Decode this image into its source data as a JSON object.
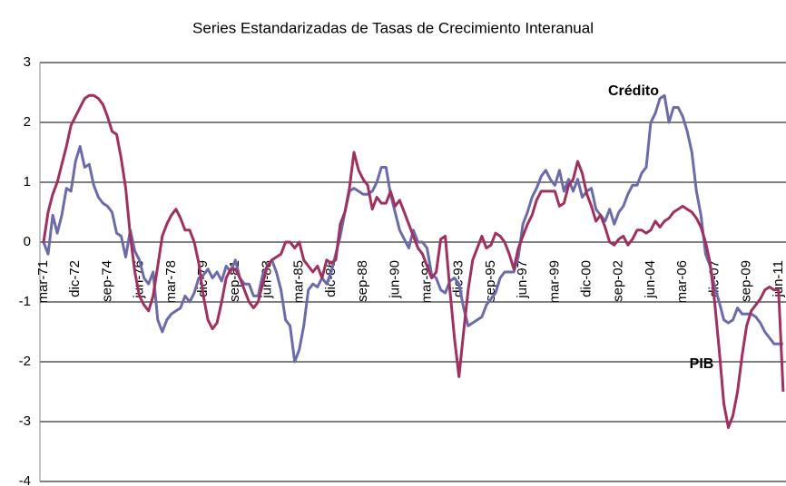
{
  "chart_data": {
    "type": "line",
    "title": "Series Estandarizadas de Tasas de Crecimiento Interanual",
    "categories": [
      "mar-71",
      null,
      null,
      null,
      null,
      null,
      null,
      "dic-72",
      null,
      null,
      null,
      null,
      null,
      null,
      "sep-74",
      null,
      null,
      null,
      null,
      null,
      null,
      "jun-76",
      null,
      null,
      null,
      null,
      null,
      null,
      "mar-78",
      null,
      null,
      null,
      null,
      null,
      null,
      "dic-79",
      null,
      null,
      null,
      null,
      null,
      null,
      "sep-81",
      null,
      null,
      null,
      null,
      null,
      null,
      "jun-83",
      null,
      null,
      null,
      null,
      null,
      null,
      "mar-85",
      null,
      null,
      null,
      null,
      null,
      null,
      "dic-86",
      null,
      null,
      null,
      null,
      null,
      null,
      "sep-88",
      null,
      null,
      null,
      null,
      null,
      null,
      "jun-90",
      null,
      null,
      null,
      null,
      null,
      null,
      "mar-92",
      null,
      null,
      null,
      null,
      null,
      null,
      "dic-93",
      null,
      null,
      null,
      null,
      null,
      null,
      "sep-95",
      null,
      null,
      null,
      null,
      null,
      null,
      "jun-97",
      null,
      null,
      null,
      null,
      null,
      null,
      "mar-99",
      null,
      null,
      null,
      null,
      null,
      null,
      "dic-00",
      null,
      null,
      null,
      null,
      null,
      null,
      "sep-02",
      null,
      null,
      null,
      null,
      null,
      null,
      "jun-04",
      null,
      null,
      null,
      null,
      null,
      null,
      "mar-06",
      null,
      null,
      null,
      null,
      null,
      null,
      "dic-07",
      null,
      null,
      null,
      null,
      null,
      null,
      "sep-09",
      null,
      null,
      null,
      null,
      null,
      null,
      "jun-11",
      null
    ],
    "series": [
      {
        "name": "Crédito",
        "color": "#6b6baa",
        "values": [
          0.0,
          -0.2,
          0.45,
          0.15,
          0.45,
          0.9,
          0.85,
          1.35,
          1.6,
          1.25,
          1.3,
          0.95,
          0.75,
          0.65,
          0.6,
          0.5,
          0.15,
          0.1,
          -0.25,
          0.2,
          -0.15,
          -0.3,
          -0.6,
          -0.7,
          -0.5,
          -1.3,
          -1.5,
          -1.3,
          -1.2,
          -1.15,
          -1.1,
          -0.9,
          -1.0,
          -0.85,
          -0.6,
          -0.55,
          -0.45,
          -0.6,
          -0.5,
          -0.65,
          -0.4,
          -0.5,
          -0.3,
          -0.6,
          -0.7,
          -0.7,
          -0.9,
          -0.9,
          -0.55,
          -0.4,
          -0.3,
          -0.5,
          -0.8,
          -1.3,
          -1.4,
          -2.0,
          -1.8,
          -1.4,
          -0.8,
          -0.7,
          -0.75,
          -0.6,
          -0.7,
          -0.5,
          -0.2,
          0.1,
          0.5,
          0.85,
          0.9,
          0.85,
          0.8,
          0.8,
          0.85,
          1.0,
          1.25,
          1.25,
          0.8,
          0.5,
          0.2,
          0.05,
          -0.1,
          0.2,
          0.0,
          0.0,
          -0.1,
          -0.55,
          -0.6,
          -0.8,
          -0.85,
          -0.65,
          -0.6,
          -0.7,
          -1.1,
          -1.4,
          -1.35,
          -1.3,
          -1.25,
          -1.05,
          -0.95,
          -0.85,
          -0.6,
          -0.5,
          -0.5,
          -0.5,
          -0.25,
          0.3,
          0.5,
          0.75,
          0.9,
          1.1,
          1.2,
          1.05,
          0.95,
          1.2,
          0.85,
          1.05,
          0.85,
          1.05,
          0.75,
          0.85,
          0.9,
          0.55,
          0.45,
          0.35,
          0.55,
          0.3,
          0.5,
          0.6,
          0.8,
          0.95,
          0.95,
          1.15,
          1.25,
          2.0,
          2.15,
          2.4,
          2.45,
          2.0,
          2.25,
          2.25,
          2.1,
          1.85,
          1.5,
          0.85,
          0.45,
          -0.2,
          -0.4,
          -0.75,
          -1.0,
          -1.3,
          -1.35,
          -1.3,
          -1.1,
          -1.2,
          -1.2,
          -1.2,
          -1.25,
          -1.35,
          -1.5,
          -1.6,
          -1.7,
          -1.7,
          -1.7
        ]
      },
      {
        "name": "PIB",
        "color": "#a0305f",
        "values": [
          0.0,
          0.5,
          0.8,
          1.0,
          1.3,
          1.6,
          1.95,
          2.1,
          2.25,
          2.4,
          2.45,
          2.45,
          2.4,
          2.3,
          2.1,
          1.85,
          1.8,
          1.4,
          0.9,
          0.1,
          -0.5,
          -0.9,
          -1.05,
          -1.15,
          -0.9,
          -0.4,
          0.1,
          0.3,
          0.45,
          0.55,
          0.4,
          0.2,
          0.2,
          0.0,
          -0.35,
          -0.9,
          -1.3,
          -1.45,
          -1.35,
          -1.0,
          -0.6,
          -0.45,
          -0.45,
          -0.6,
          -0.8,
          -1.0,
          -1.1,
          -1.0,
          -0.7,
          -0.4,
          -0.3,
          -0.25,
          -0.2,
          0.0,
          0.0,
          -0.1,
          0.0,
          -0.3,
          -0.4,
          -0.5,
          -0.4,
          -0.6,
          -0.3,
          -0.35,
          -0.3,
          0.3,
          0.5,
          0.9,
          1.5,
          1.2,
          1.05,
          0.95,
          0.55,
          0.75,
          0.65,
          0.65,
          0.85,
          0.6,
          0.7,
          0.5,
          0.3,
          0.1,
          -0.1,
          -0.2,
          -0.4,
          -0.6,
          -0.5,
          0.05,
          0.1,
          -0.8,
          -1.6,
          -2.25,
          -1.5,
          -0.8,
          -0.3,
          -0.1,
          0.1,
          -0.1,
          -0.05,
          0.15,
          0.1,
          0.0,
          -0.2,
          -0.45,
          -0.1,
          0.1,
          0.3,
          0.45,
          0.7,
          0.85,
          0.85,
          0.85,
          0.85,
          0.6,
          0.65,
          0.95,
          1.05,
          1.35,
          1.15,
          0.8,
          0.6,
          0.35,
          0.45,
          0.25,
          0.0,
          -0.05,
          0.05,
          0.1,
          -0.05,
          0.05,
          0.2,
          0.2,
          0.15,
          0.2,
          0.35,
          0.25,
          0.35,
          0.4,
          0.5,
          0.55,
          0.6,
          0.55,
          0.5,
          0.4,
          0.25,
          0.0,
          -0.35,
          -1.0,
          -1.8,
          -2.7,
          -3.1,
          -2.9,
          -2.5,
          -1.9,
          -1.4,
          -1.15,
          -1.05,
          -0.95,
          -0.8,
          -0.75,
          -0.8,
          -0.8,
          -2.5
        ]
      }
    ],
    "ylim": [
      -4,
      3
    ],
    "yticks": [
      -4,
      -3,
      -2,
      -1,
      0,
      1,
      2,
      3
    ],
    "grid": true
  }
}
